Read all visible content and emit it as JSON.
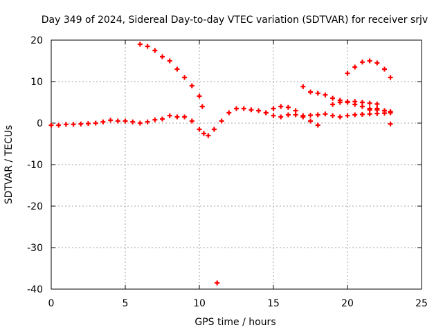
{
  "chart_data": {
    "type": "scatter",
    "title": "Day 349 of 2024, Sidereal Day-to-day VTEC variation (SDTVAR) for receiver srjv",
    "xlabel": "GPS time / hours",
    "ylabel": "SDTVAR / TECUs",
    "xlim": [
      0,
      25
    ],
    "ylim": [
      -40,
      20
    ],
    "xticks": [
      0,
      5,
      10,
      15,
      20,
      25
    ],
    "yticks": [
      -40,
      -30,
      -20,
      -10,
      0,
      10,
      20
    ],
    "grid": true,
    "legend": "none",
    "marker": "+",
    "color": "#ff0000",
    "series": [
      {
        "name": "track-main",
        "x": [
          0.0,
          0.5,
          1.0,
          1.5,
          2.0,
          2.5,
          3.0,
          3.5,
          4.0,
          4.5,
          5.0,
          5.5,
          6.0,
          6.5,
          7.0,
          7.5,
          8.0,
          8.5,
          9.0,
          9.5,
          10.0,
          10.3,
          10.6,
          11.0,
          11.5,
          12.0,
          12.5,
          13.0,
          13.5,
          14.0,
          14.5,
          15.0,
          15.5,
          16.0,
          16.5,
          17.0,
          17.5,
          18.0,
          18.5,
          19.0,
          19.5,
          20.0,
          20.5,
          21.0,
          21.5,
          22.0,
          22.5,
          22.9
        ],
        "y": [
          -0.5,
          -0.5,
          -0.3,
          -0.3,
          -0.2,
          -0.1,
          0.0,
          0.3,
          0.7,
          0.5,
          0.5,
          0.3,
          0.0,
          0.3,
          0.8,
          1.0,
          1.8,
          1.5,
          1.5,
          0.5,
          -1.5,
          -2.5,
          -3.0,
          -1.5,
          0.5,
          2.5,
          3.5,
          3.5,
          3.2,
          3.0,
          2.5,
          1.8,
          1.5,
          2.0,
          2.0,
          1.8,
          1.9,
          2.0,
          2.2,
          1.8,
          1.5,
          1.8,
          2.0,
          2.1,
          2.2,
          2.3,
          2.4,
          2.5
        ]
      },
      {
        "name": "track-descending",
        "x": [
          6.0,
          6.5,
          7.0,
          7.5,
          8.0,
          8.5,
          9.0,
          9.5,
          10.0,
          10.2
        ],
        "y": [
          19.0,
          18.5,
          17.5,
          16.0,
          15.0,
          13.0,
          11.0,
          9.0,
          6.5,
          4.0
        ]
      },
      {
        "name": "track-mid-arc",
        "x": [
          14.5,
          15.0,
          15.5,
          16.0,
          16.5,
          17.0,
          17.5,
          18.0
        ],
        "y": [
          2.5,
          3.5,
          4.0,
          3.8,
          3.0,
          1.5,
          0.5,
          -0.5
        ]
      },
      {
        "name": "track-upper-right",
        "x": [
          17.0,
          17.5,
          18.0,
          18.5,
          19.0,
          19.5,
          20.0,
          20.5,
          21.0,
          21.5,
          22.0,
          22.5,
          22.9
        ],
        "y": [
          8.8,
          7.5,
          7.2,
          6.8,
          6.0,
          5.5,
          5.0,
          4.5,
          4.0,
          3.5,
          3.2,
          3.0,
          2.8
        ]
      },
      {
        "name": "track-right-band",
        "x": [
          19.0,
          19.5,
          20.0,
          20.5,
          21.0,
          21.5,
          22.0
        ],
        "y": [
          4.5,
          5.0,
          5.2,
          5.2,
          5.0,
          4.8,
          4.6
        ]
      },
      {
        "name": "track-arc-top",
        "x": [
          20.0,
          20.5,
          21.0,
          21.5,
          22.0,
          22.5,
          22.9
        ],
        "y": [
          12.0,
          13.5,
          14.7,
          15.0,
          14.5,
          13.0,
          11.0
        ]
      },
      {
        "name": "track-right-low",
        "x": [
          21.5,
          22.0,
          22.5,
          22.9
        ],
        "y": [
          3.2,
          3.5,
          3.0,
          2.5
        ]
      },
      {
        "name": "outliers",
        "x": [
          11.2,
          22.9
        ],
        "y": [
          -38.5,
          -0.2
        ]
      }
    ]
  }
}
